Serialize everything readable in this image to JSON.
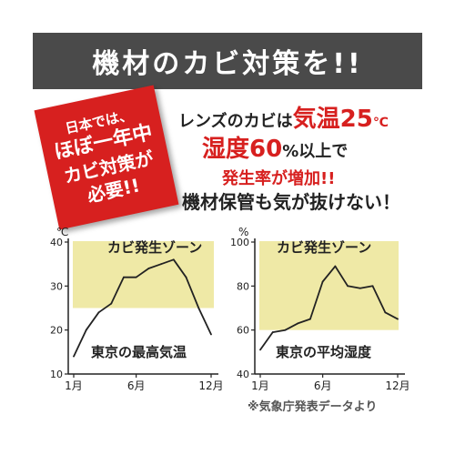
{
  "banner": {
    "title": "機材のカビ対策を!!"
  },
  "badge": {
    "line1": "日本では、",
    "line2": "ほぼ一年中",
    "line3": "カビ対策が",
    "line4": "必要!!"
  },
  "message": {
    "line1_prefix": "レンズのカビは",
    "line1_highlight": "気温25",
    "line1_unit": "℃",
    "line2_highlight": "湿度60",
    "line2_rest": "%以上で",
    "line3": "発生率が増加!!",
    "line4": "機材保管も気が抜けない！"
  },
  "source_note": "※気象庁発表データより",
  "colors": {
    "zone": "#efe9a6",
    "accent": "#d7201f",
    "banner": "#4a4a4a"
  },
  "chart_data": [
    {
      "type": "line",
      "zone_label": "カビ発生ゾーン",
      "caption": "東京の最高気温",
      "unit": "℃",
      "x": [
        1,
        2,
        3,
        4,
        5,
        6,
        7,
        8,
        9,
        10,
        11,
        12
      ],
      "values": [
        14,
        20,
        24,
        26,
        32,
        32,
        34,
        35,
        36,
        32,
        25,
        19
      ],
      "ylim": [
        10,
        40
      ],
      "yticks": [
        "10",
        "20",
        "30",
        "40"
      ],
      "xticks": [
        "1月",
        "6月",
        "12月"
      ],
      "zone": [
        25,
        40
      ],
      "grid": false
    },
    {
      "type": "line",
      "zone_label": "カビ発生ゾーン",
      "caption": "東京の平均湿度",
      "unit": "%",
      "x": [
        1,
        2,
        3,
        4,
        5,
        6,
        7,
        8,
        9,
        10,
        11,
        12
      ],
      "values": [
        51,
        59,
        60,
        63,
        65,
        82,
        89,
        80,
        79,
        80,
        68,
        65
      ],
      "ylim": [
        40,
        100
      ],
      "yticks": [
        "40",
        "60",
        "80",
        "100"
      ],
      "xticks": [
        "1月",
        "6月",
        "12月"
      ],
      "zone": [
        60,
        100
      ],
      "grid": false
    }
  ]
}
